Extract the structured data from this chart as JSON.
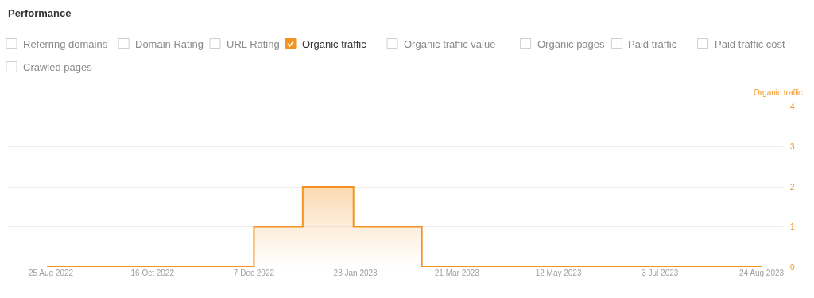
{
  "chart_data": {
    "type": "step",
    "title": "Performance",
    "ylabel": "Organic traffic",
    "annotations": [
      "Referring domains",
      "Domain Rating",
      "URL Rating",
      "Organic traffic value",
      "Organic pages",
      "Paid traffic",
      "Paid traffic cost",
      "Crawled pages"
    ],
    "x": [
      "2022-08-23",
      "2022-12-07",
      "2023-01-01",
      "2023-01-27",
      "2023-03-03",
      "2023-08-24"
    ],
    "series": [
      {
        "name": "Organic traffic",
        "color": "#f39422",
        "values": [
          0,
          1,
          2,
          1,
          0,
          0
        ]
      }
    ],
    "xlim": [
      "2022-08-03",
      "2023-09-04"
    ],
    "xticks": [
      {
        "value": "2022-08-25",
        "label": "25 Aug 2022"
      },
      {
        "value": "2022-10-16",
        "label": "16 Oct 2022"
      },
      {
        "value": "2022-12-07",
        "label": "7 Dec 2022"
      },
      {
        "value": "2023-01-28",
        "label": "28 Jan 2023"
      },
      {
        "value": "2023-03-21",
        "label": "21 Mar 2023"
      },
      {
        "value": "2023-05-12",
        "label": "12 May 2023"
      },
      {
        "value": "2023-07-03",
        "label": "3 Jul 2023"
      },
      {
        "value": "2023-08-24",
        "label": "24 Aug 2023"
      }
    ],
    "ylim": [
      0,
      4
    ],
    "yticks": [
      0,
      1,
      2,
      3,
      4
    ],
    "grid": "y",
    "legend": "top left"
  }
}
